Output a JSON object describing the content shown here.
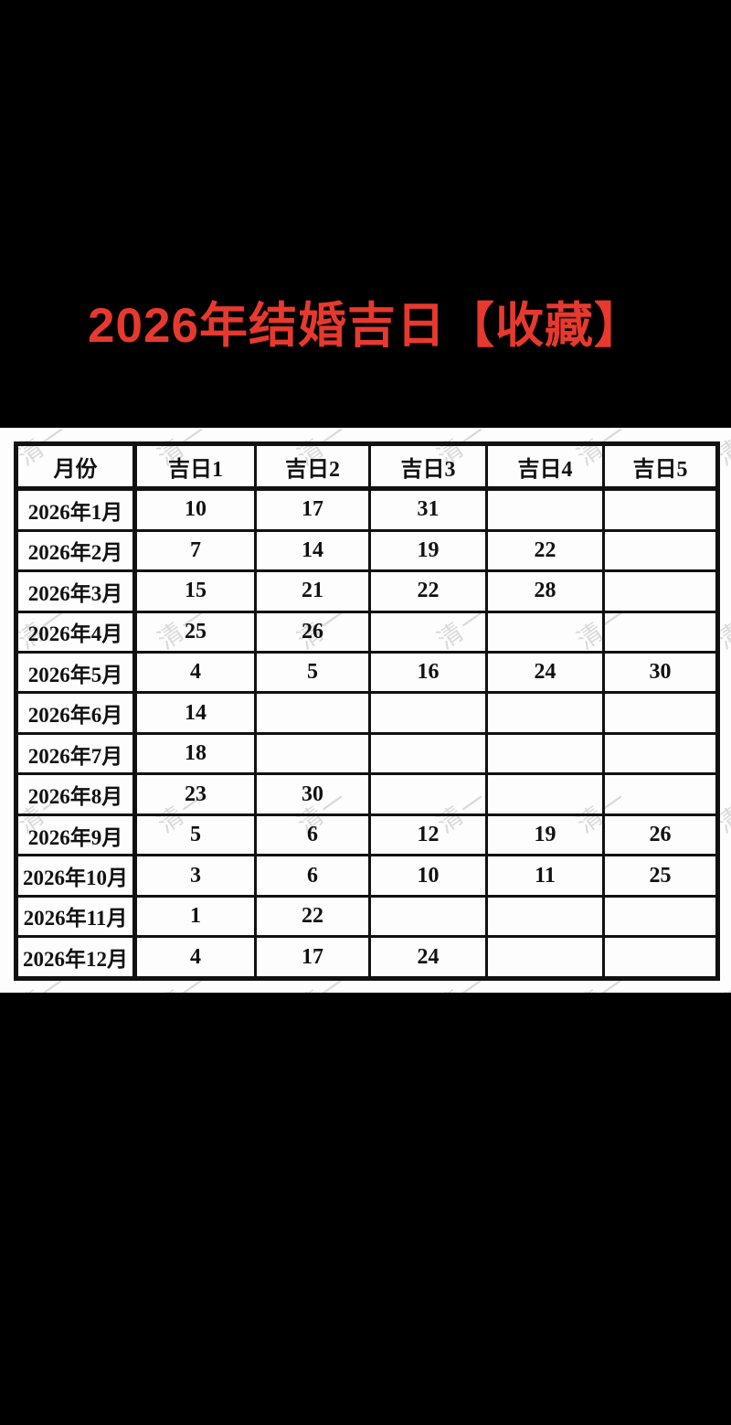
{
  "title": {
    "text": "2026年结婚吉日【收藏】",
    "color": "#e8392e"
  },
  "watermark": {
    "text": "清一",
    "color": "#bdbdbd"
  },
  "colors": {
    "background": "#000000",
    "panel": "#fdfdfd",
    "grid": "#111111"
  },
  "table": {
    "headers": [
      "月份",
      "吉日1",
      "吉日2",
      "吉日3",
      "吉日4",
      "吉日5"
    ],
    "rows": [
      {
        "month": "2026年1月",
        "days": [
          "10",
          "17",
          "31",
          "",
          ""
        ]
      },
      {
        "month": "2026年2月",
        "days": [
          "7",
          "14",
          "19",
          "22",
          ""
        ]
      },
      {
        "month": "2026年3月",
        "days": [
          "15",
          "21",
          "22",
          "28",
          ""
        ]
      },
      {
        "month": "2026年4月",
        "days": [
          "25",
          "26",
          "",
          "",
          ""
        ]
      },
      {
        "month": "2026年5月",
        "days": [
          "4",
          "5",
          "16",
          "24",
          "30"
        ]
      },
      {
        "month": "2026年6月",
        "days": [
          "14",
          "",
          "",
          "",
          ""
        ]
      },
      {
        "month": "2026年7月",
        "days": [
          "18",
          "",
          "",
          "",
          ""
        ]
      },
      {
        "month": "2026年8月",
        "days": [
          "23",
          "30",
          "",
          "",
          ""
        ]
      },
      {
        "month": "2026年9月",
        "days": [
          "5",
          "6",
          "12",
          "19",
          "26"
        ]
      },
      {
        "month": "2026年10月",
        "days": [
          "3",
          "6",
          "10",
          "11",
          "25"
        ]
      },
      {
        "month": "2026年11月",
        "days": [
          "1",
          "22",
          "",
          "",
          ""
        ]
      },
      {
        "month": "2026年12月",
        "days": [
          "4",
          "17",
          "24",
          "",
          ""
        ]
      }
    ]
  }
}
